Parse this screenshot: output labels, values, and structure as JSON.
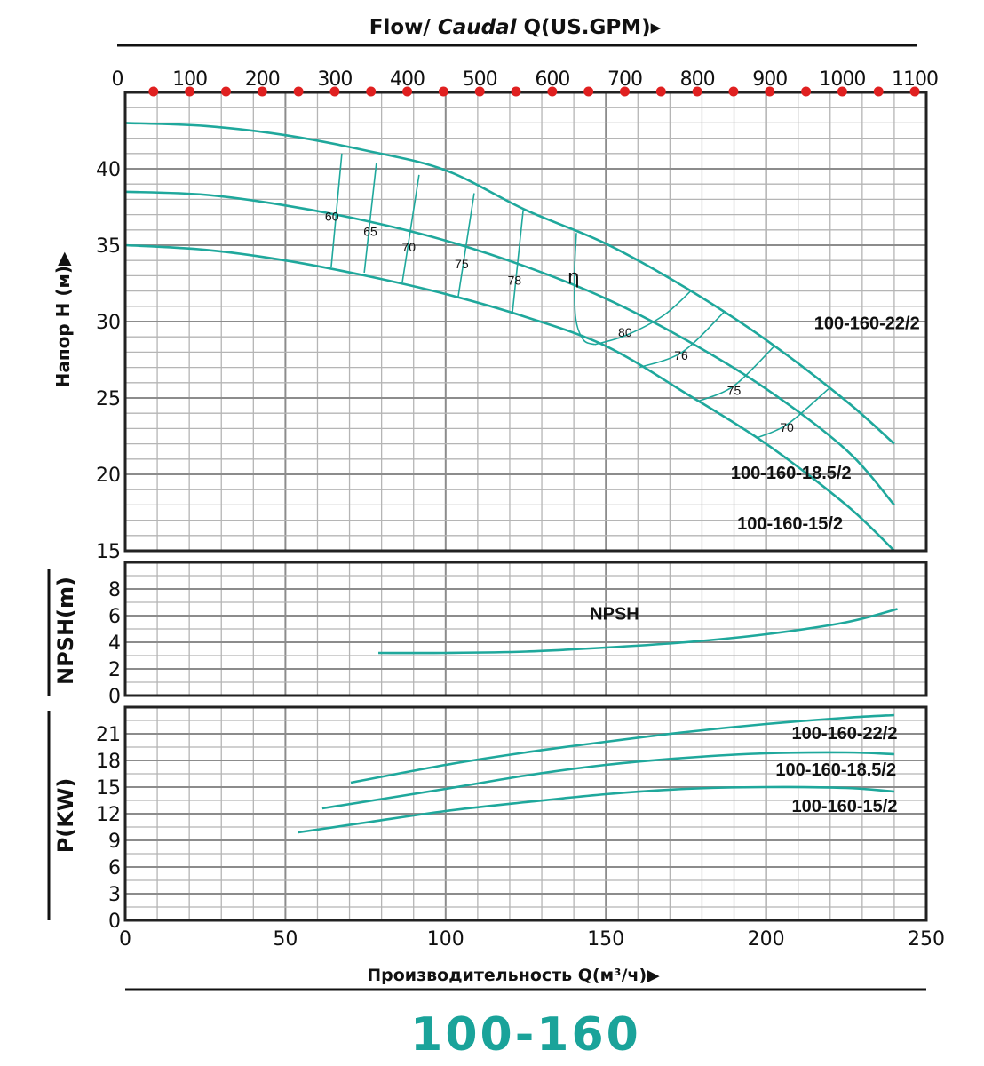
{
  "colors": {
    "curve": "#1fa89c",
    "title": "#1aa39a",
    "gpm_marker": "#e02020",
    "grid": "#b5b5b5",
    "grid_major": "#8c8c8c"
  },
  "top_axis": {
    "title_prefix": "Flow/ ",
    "title_italic": "Caudal",
    "title_suffix": " Q(US.GPM)",
    "arrow": "▸",
    "ticks": [
      "0",
      "100",
      "200",
      "300",
      "400",
      "500",
      "600",
      "700",
      "800",
      "900",
      "1000",
      "1100"
    ],
    "marker_step": 50,
    "range": [
      0,
      1100
    ]
  },
  "bottom_axis": {
    "title": "Производительность Q(м³/ч)",
    "arrow": "▶",
    "ticks": [
      "0",
      "50",
      "100",
      "150",
      "200",
      "250"
    ]
  },
  "product_title": "100-160",
  "chart_data": [
    {
      "type": "line",
      "panel": "head",
      "ylabel": "Напор H (м)▶",
      "xlim": [
        0,
        250
      ],
      "ylim": [
        15,
        45
      ],
      "yticks": [
        "15",
        "20",
        "25",
        "30",
        "35",
        "40"
      ],
      "grid": true,
      "series": [
        {
          "name": "100-160-22/2",
          "points": [
            [
              0,
              43
            ],
            [
              25,
              42.8
            ],
            [
              50,
              42.2
            ],
            [
              75,
              41.2
            ],
            [
              100,
              39.9
            ],
            [
              125,
              37.3
            ],
            [
              150,
              35.1
            ],
            [
              175,
              32.2
            ],
            [
              200,
              28.8
            ],
            [
              225,
              24.8
            ],
            [
              240,
              22
            ]
          ],
          "label_at": [
            215,
            29.5
          ]
        },
        {
          "name": "100-160-18.5/2",
          "points": [
            [
              0,
              38.5
            ],
            [
              25,
              38.3
            ],
            [
              50,
              37.6
            ],
            [
              75,
              36.6
            ],
            [
              100,
              35.3
            ],
            [
              125,
              33.6
            ],
            [
              150,
              31.5
            ],
            [
              175,
              28.8
            ],
            [
              200,
              25.6
            ],
            [
              225,
              21.6
            ],
            [
              240,
              18
            ]
          ],
          "label_at": [
            189,
            19.7
          ]
        },
        {
          "name": "100-160-15/2",
          "points": [
            [
              0,
              35
            ],
            [
              25,
              34.7
            ],
            [
              50,
              34
            ],
            [
              75,
              33
            ],
            [
              100,
              31.8
            ],
            [
              125,
              30.3
            ],
            [
              150,
              28.4
            ],
            [
              175,
              25.3
            ],
            [
              200,
              22
            ],
            [
              225,
              18
            ],
            [
              240,
              15
            ]
          ],
          "label_at": [
            191,
            16.4
          ]
        }
      ],
      "efficiency_symbol": {
        "text": "η",
        "at": [
          138,
          32.5
        ]
      },
      "efficiency_lines": [
        {
          "label": "60",
          "points": [
            [
              67.6,
              41.0
            ],
            [
              64.3,
              33.6
            ]
          ],
          "label_at": [
            64.5,
            36.6
          ]
        },
        {
          "label": "65",
          "points": [
            [
              78.4,
              40.4
            ],
            [
              74.6,
              33.2
            ]
          ],
          "label_at": [
            76.5,
            35.6
          ]
        },
        {
          "label": "70",
          "points": [
            [
              91.7,
              39.6
            ],
            [
              86.5,
              32.6
            ]
          ],
          "label_at": [
            88.5,
            34.6
          ]
        },
        {
          "label": "75",
          "points": [
            [
              108.9,
              38.4
            ],
            [
              103.9,
              31.6
            ]
          ],
          "label_at": [
            105,
            33.5
          ]
        },
        {
          "label": "78",
          "points": [
            [
              124.2,
              37.3
            ],
            [
              120.8,
              30.5
            ]
          ],
          "label_at": [
            121.5,
            32.4
          ]
        },
        {
          "label": "",
          "points": [
            [
              140.8,
              35.8
            ],
            [
              140.2,
              33
            ],
            [
              140.6,
              30.2
            ],
            [
              143,
              28.8
            ],
            [
              146.6,
              28.5
            ]
          ]
        },
        {
          "label": "80",
          "points": [
            [
              146.6,
              28.5
            ],
            [
              156.3,
              29.1
            ],
            [
              168,
              30.4
            ],
            [
              176.5,
              32.0
            ]
          ],
          "label_at": [
            156,
            29.0
          ]
        },
        {
          "label": "76",
          "points": [
            [
              160.5,
              27.0
            ],
            [
              173.8,
              28.0
            ],
            [
              186.8,
              30.6
            ]
          ],
          "label_at": [
            173.5,
            27.5
          ]
        },
        {
          "label": "75",
          "points": [
            [
              179,
              24.8
            ],
            [
              190,
              25.8
            ],
            [
              202.6,
              28.4
            ]
          ],
          "label_at": [
            190,
            25.2
          ]
        },
        {
          "label": "70",
          "points": [
            [
              197.3,
              22.4
            ],
            [
              206.8,
              23.3
            ],
            [
              219.5,
              25.6
            ]
          ],
          "label_at": [
            206.5,
            22.8
          ]
        }
      ]
    },
    {
      "type": "line",
      "panel": "npsh",
      "ylabel": "NPSH(m)",
      "xlim": [
        0,
        250
      ],
      "ylim": [
        0,
        10
      ],
      "yticks": [
        "0",
        "2",
        "4",
        "6",
        "8"
      ],
      "grid": true,
      "series": [
        {
          "name": "NPSH",
          "points": [
            [
              79,
              3.2
            ],
            [
              100,
              3.2
            ],
            [
              125,
              3.3
            ],
            [
              150,
              3.6
            ],
            [
              175,
              4.0
            ],
            [
              200,
              4.6
            ],
            [
              225,
              5.5
            ],
            [
              241,
              6.5
            ]
          ],
          "label_at": [
            145,
            5.7
          ]
        }
      ]
    },
    {
      "type": "line",
      "panel": "power",
      "ylabel": "P(KW)",
      "xlim": [
        0,
        250
      ],
      "ylim": [
        0,
        24
      ],
      "yticks": [
        "0",
        "3",
        "6",
        "9",
        "12",
        "15",
        "18",
        "21"
      ],
      "grid": true,
      "series": [
        {
          "name": "100-160-22/2",
          "points": [
            [
              70.4,
              15.5
            ],
            [
              100,
              17.5
            ],
            [
              125,
              18.9
            ],
            [
              150,
              20.1
            ],
            [
              175,
              21.2
            ],
            [
              200,
              22.1
            ],
            [
              225,
              22.8
            ],
            [
              240,
              23.1
            ]
          ],
          "label_at": [
            208,
            20.4
          ]
        },
        {
          "name": "100-160-18.5/2",
          "points": [
            [
              61.5,
              12.6
            ],
            [
              100,
              14.8
            ],
            [
              125,
              16.3
            ],
            [
              150,
              17.5
            ],
            [
              175,
              18.3
            ],
            [
              200,
              18.8
            ],
            [
              225,
              18.9
            ],
            [
              240,
              18.7
            ]
          ],
          "label_at": [
            203,
            16.3
          ]
        },
        {
          "name": "100-160-15/2",
          "points": [
            [
              54,
              9.9
            ],
            [
              75,
              11
            ],
            [
              100,
              12.3
            ],
            [
              125,
              13.3
            ],
            [
              150,
              14.2
            ],
            [
              175,
              14.8
            ],
            [
              200,
              15.0
            ],
            [
              225,
              14.9
            ],
            [
              240,
              14.5
            ]
          ],
          "label_at": [
            208,
            12.2
          ]
        }
      ]
    }
  ]
}
